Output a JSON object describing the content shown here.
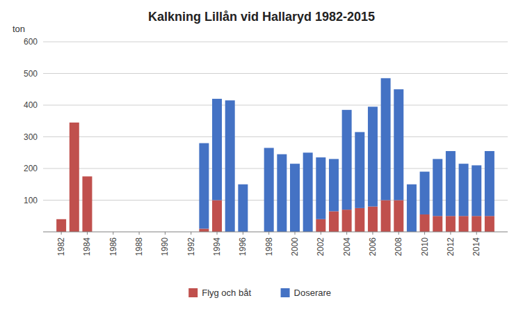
{
  "chart_data": {
    "type": "bar",
    "stacked": true,
    "title": "Kalkning Lillån vid Hallaryd 1982-2015",
    "ylabel": "ton",
    "x": [
      1982,
      1983,
      1984,
      1985,
      1986,
      1987,
      1988,
      1989,
      1990,
      1991,
      1992,
      1993,
      1994,
      1995,
      1996,
      1997,
      1998,
      1999,
      2000,
      2001,
      2002,
      2003,
      2004,
      2005,
      2006,
      2007,
      2008,
      2009,
      2010,
      2011,
      2012,
      2013,
      2014,
      2015
    ],
    "series": [
      {
        "name": "Flyg och båt",
        "color": "#c0504d",
        "values": [
          40,
          345,
          175,
          0,
          0,
          0,
          0,
          0,
          0,
          0,
          0,
          10,
          100,
          0,
          0,
          0,
          0,
          0,
          0,
          0,
          40,
          65,
          70,
          75,
          80,
          100,
          100,
          0,
          55,
          50,
          50,
          50,
          50,
          50
        ]
      },
      {
        "name": "Doserare",
        "color": "#4472c4",
        "values": [
          0,
          0,
          0,
          0,
          0,
          0,
          0,
          0,
          0,
          0,
          0,
          270,
          320,
          415,
          150,
          0,
          265,
          245,
          215,
          250,
          195,
          165,
          315,
          240,
          315,
          385,
          350,
          150,
          135,
          180,
          205,
          165,
          160,
          205
        ]
      }
    ],
    "xlim": [
      1980.6,
      2016.4
    ],
    "xticks": [
      1982,
      1984,
      1986,
      1988,
      1990,
      1992,
      1994,
      1996,
      1998,
      2000,
      2002,
      2004,
      2006,
      2008,
      2010,
      2012,
      2014
    ],
    "ylim": [
      0,
      600
    ],
    "yticks": [
      100,
      200,
      300,
      400,
      500,
      600
    ],
    "grid": true,
    "legend": "bottom"
  }
}
